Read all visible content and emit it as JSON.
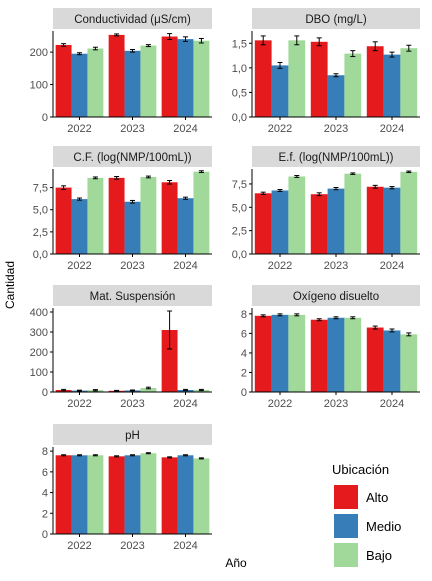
{
  "figure": {
    "ylabel": "Cantidad",
    "xlabel": "Año"
  },
  "legend": {
    "title": "Ubicación",
    "position": "bottom-right",
    "items": [
      {
        "label": "Alto",
        "color": "#E41A1C"
      },
      {
        "label": "Medio",
        "color": "#377EB8"
      },
      {
        "label": "Bajo",
        "color": "#A1D99B"
      }
    ]
  },
  "chart_data": [
    {
      "type": "bar",
      "title": "Conductividad (μS/cm)",
      "categories": [
        "2022",
        "2023",
        "2024"
      ],
      "ylim": [
        0,
        265
      ],
      "yticks": [
        {
          "v": 0,
          "label": "0"
        },
        {
          "v": 100,
          "label": "100"
        },
        {
          "v": 200,
          "label": "200"
        }
      ],
      "series": [
        {
          "name": "Alto",
          "values": [
            222,
            253,
            248
          ],
          "errors": [
            4,
            3,
            9
          ]
        },
        {
          "name": "Medio",
          "values": [
            195,
            204,
            240
          ],
          "errors": [
            3,
            4,
            7
          ]
        },
        {
          "name": "Bajo",
          "values": [
            211,
            220,
            235
          ],
          "errors": [
            4,
            3,
            7
          ]
        }
      ]
    },
    {
      "type": "bar",
      "title": "DBO (mg/L)",
      "categories": [
        "2022",
        "2023",
        "2024"
      ],
      "ylim": [
        0,
        1.75
      ],
      "yticks": [
        {
          "v": 0,
          "label": "0,0"
        },
        {
          "v": 0.5,
          "label": "0,5"
        },
        {
          "v": 1,
          "label": "1,0"
        },
        {
          "v": 1.5,
          "label": "1,5"
        }
      ],
      "series": [
        {
          "name": "Alto",
          "values": [
            1.56,
            1.53,
            1.44
          ],
          "errors": [
            0.09,
            0.08,
            0.09
          ]
        },
        {
          "name": "Medio",
          "values": [
            1.05,
            0.85,
            1.27
          ],
          "errors": [
            0.06,
            0.03,
            0.05
          ]
        },
        {
          "name": "Bajo",
          "values": [
            1.56,
            1.29,
            1.4
          ],
          "errors": [
            0.09,
            0.06,
            0.06
          ]
        }
      ]
    },
    {
      "type": "bar",
      "title": "C.F. (log(NMP/100mL))",
      "categories": [
        "2022",
        "2023",
        "2024"
      ],
      "ylim": [
        0,
        9.6
      ],
      "yticks": [
        {
          "v": 0,
          "label": "0,0"
        },
        {
          "v": 2.5,
          "label": "2,5"
        },
        {
          "v": 5,
          "label": "5,0"
        },
        {
          "v": 7.5,
          "label": "7,5"
        }
      ],
      "series": [
        {
          "name": "Alto",
          "values": [
            7.5,
            8.6,
            8.1
          ],
          "errors": [
            0.2,
            0.15,
            0.2
          ]
        },
        {
          "name": "Medio",
          "values": [
            6.2,
            5.9,
            6.3
          ],
          "errors": [
            0.12,
            0.15,
            0.12
          ]
        },
        {
          "name": "Bajo",
          "values": [
            8.6,
            8.7,
            9.3
          ],
          "errors": [
            0.1,
            0.1,
            0.1
          ]
        }
      ]
    },
    {
      "type": "bar",
      "title": "E.f. (log(NMP/100mL))",
      "categories": [
        "2022",
        "2023",
        "2024"
      ],
      "ylim": [
        0,
        9.1
      ],
      "yticks": [
        {
          "v": 0,
          "label": "0,0"
        },
        {
          "v": 2.5,
          "label": "2,5"
        },
        {
          "v": 5,
          "label": "5,0"
        },
        {
          "v": 7.5,
          "label": "7,5"
        }
      ],
      "series": [
        {
          "name": "Alto",
          "values": [
            6.5,
            6.4,
            7.2
          ],
          "errors": [
            0.12,
            0.15,
            0.15
          ]
        },
        {
          "name": "Medio",
          "values": [
            6.8,
            7.0,
            7.1
          ],
          "errors": [
            0.1,
            0.12,
            0.12
          ]
        },
        {
          "name": "Bajo",
          "values": [
            8.3,
            8.6,
            8.8
          ],
          "errors": [
            0.1,
            0.08,
            0.08
          ]
        }
      ]
    },
    {
      "type": "bar",
      "title": "Mat. Suspensión",
      "categories": [
        "2022",
        "2023",
        "2024"
      ],
      "ylim": [
        0,
        420
      ],
      "yticks": [
        {
          "v": 0,
          "label": "0"
        },
        {
          "v": 100,
          "label": "100"
        },
        {
          "v": 200,
          "label": "200"
        },
        {
          "v": 300,
          "label": "300"
        },
        {
          "v": 400,
          "label": "400"
        }
      ],
      "series": [
        {
          "name": "Alto",
          "values": [
            10,
            6,
            310
          ],
          "errors": [
            3,
            2,
            95
          ]
        },
        {
          "name": "Medio",
          "values": [
            7,
            8,
            10
          ],
          "errors": [
            2,
            2,
            3
          ]
        },
        {
          "name": "Bajo",
          "values": [
            9,
            20,
            10
          ],
          "errors": [
            3,
            4,
            3
          ]
        }
      ]
    },
    {
      "type": "bar",
      "title": "Oxígeno disuelto",
      "categories": [
        "2022",
        "2023",
        "2024"
      ],
      "ylim": [
        0,
        8.6
      ],
      "yticks": [
        {
          "v": 0,
          "label": "0"
        },
        {
          "v": 2,
          "label": "2"
        },
        {
          "v": 4,
          "label": "4"
        },
        {
          "v": 6,
          "label": "6"
        },
        {
          "v": 8,
          "label": "8"
        }
      ],
      "series": [
        {
          "name": "Alto",
          "values": [
            7.8,
            7.4,
            6.6
          ],
          "errors": [
            0.1,
            0.1,
            0.15
          ]
        },
        {
          "name": "Medio",
          "values": [
            7.9,
            7.6,
            6.3
          ],
          "errors": [
            0.1,
            0.1,
            0.15
          ]
        },
        {
          "name": "Bajo",
          "values": [
            7.9,
            7.6,
            5.9
          ],
          "errors": [
            0.1,
            0.1,
            0.15
          ]
        }
      ]
    },
    {
      "type": "bar",
      "title": "pH",
      "categories": [
        "2022",
        "2023",
        "2024"
      ],
      "ylim": [
        0,
        8.4
      ],
      "yticks": [
        {
          "v": 0,
          "label": "0"
        },
        {
          "v": 2,
          "label": "2"
        },
        {
          "v": 4,
          "label": "4"
        },
        {
          "v": 6,
          "label": "6"
        },
        {
          "v": 8,
          "label": "8"
        }
      ],
      "series": [
        {
          "name": "Alto",
          "values": [
            7.6,
            7.5,
            7.4
          ],
          "errors": [
            0.05,
            0.05,
            0.05
          ]
        },
        {
          "name": "Medio",
          "values": [
            7.6,
            7.6,
            7.6
          ],
          "errors": [
            0.05,
            0.05,
            0.05
          ]
        },
        {
          "name": "Bajo",
          "values": [
            7.6,
            7.8,
            7.3
          ],
          "errors": [
            0.05,
            0.05,
            0.05
          ]
        }
      ]
    }
  ]
}
